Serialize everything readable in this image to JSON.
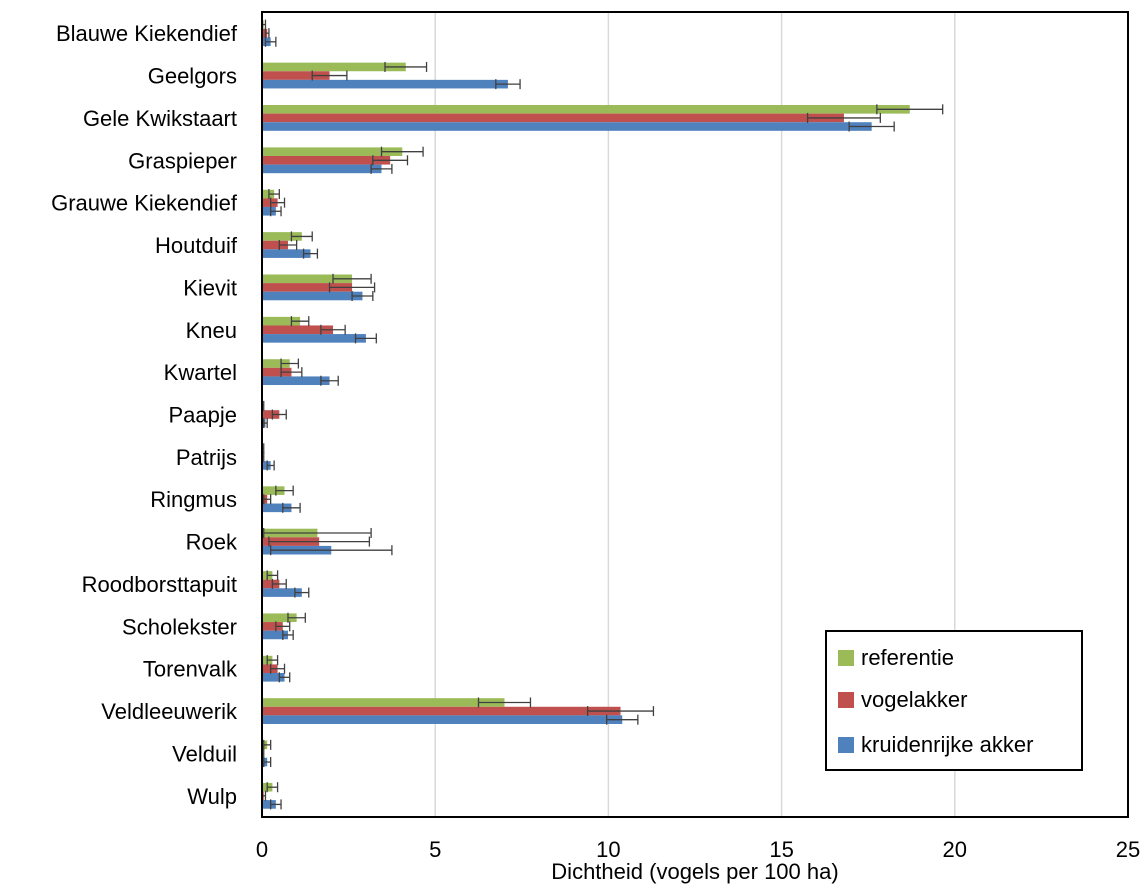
{
  "chart_data": {
    "type": "bar",
    "orientation": "horizontal",
    "title": "",
    "xlabel": "Dichtheid (vogels per 100 ha)",
    "ylabel": "",
    "xlim": [
      0,
      25
    ],
    "xticks": [
      0,
      5,
      10,
      15,
      20,
      25
    ],
    "grid": "vertical",
    "legend_position": "bottom-right",
    "categories": [
      "Blauwe Kiekendief",
      "Geelgors",
      "Gele Kwikstaart",
      "Graspieper",
      "Grauwe Kiekendief",
      "Houtduif",
      "Kievit",
      "Kneu",
      "Kwartel",
      "Paapje",
      "Patrijs",
      "Ringmus",
      "Roek",
      "Roodborsttapuit",
      "Scholekster",
      "Torenvalk",
      "Veldleeuwerik",
      "Velduil",
      "Wulp"
    ],
    "series": [
      {
        "name": "referentie",
        "color": "#9bbb59",
        "values": [
          0.05,
          4.15,
          18.7,
          4.05,
          0.35,
          1.15,
          2.6,
          1.1,
          0.8,
          0.0,
          0.0,
          0.65,
          1.6,
          0.3,
          1.0,
          0.3,
          7.0,
          0.15,
          0.3
        ],
        "errors": [
          0.05,
          0.6,
          0.95,
          0.6,
          0.15,
          0.3,
          0.55,
          0.25,
          0.25,
          0.05,
          0.05,
          0.25,
          1.55,
          0.15,
          0.25,
          0.15,
          0.75,
          0.1,
          0.15
        ]
      },
      {
        "name": "vogelakker",
        "color": "#c0504d",
        "values": [
          0.15,
          1.95,
          16.8,
          3.7,
          0.45,
          0.75,
          2.6,
          2.05,
          0.85,
          0.5,
          0.0,
          0.15,
          1.65,
          0.5,
          0.6,
          0.45,
          10.35,
          0.0,
          0.05
        ],
        "errors": [
          0.05,
          0.5,
          1.05,
          0.5,
          0.2,
          0.25,
          0.65,
          0.35,
          0.3,
          0.2,
          0.05,
          0.1,
          1.45,
          0.2,
          0.2,
          0.2,
          0.95,
          0.05,
          0.05
        ]
      },
      {
        "name": "kruidenrijke akker",
        "color": "#4f81bd",
        "values": [
          0.25,
          7.1,
          17.6,
          3.45,
          0.4,
          1.4,
          2.9,
          3.0,
          1.95,
          0.1,
          0.25,
          0.85,
          2.0,
          1.15,
          0.75,
          0.65,
          10.4,
          0.15,
          0.4
        ],
        "errors": [
          0.15,
          0.35,
          0.65,
          0.3,
          0.15,
          0.2,
          0.3,
          0.3,
          0.25,
          0.05,
          0.1,
          0.25,
          1.75,
          0.2,
          0.15,
          0.15,
          0.45,
          0.1,
          0.15
        ]
      }
    ]
  },
  "icons": {
    "legend_marker": "filled-square"
  }
}
